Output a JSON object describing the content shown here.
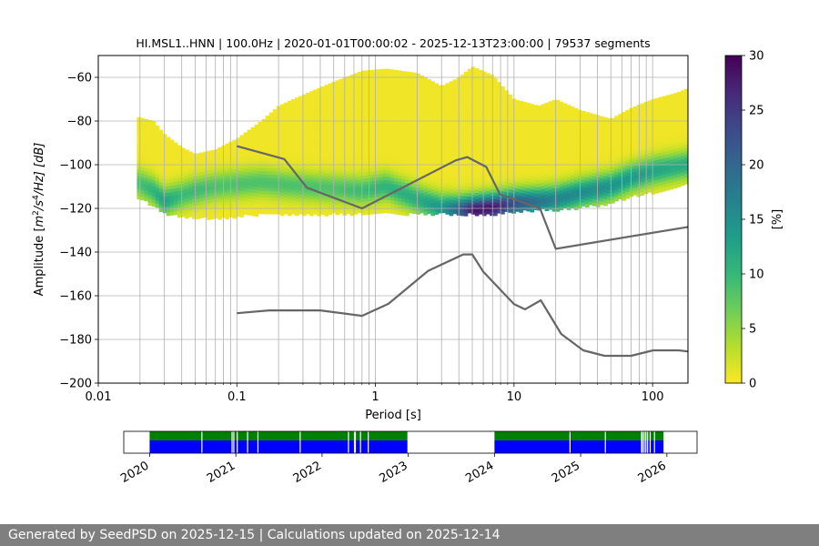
{
  "footer": {
    "text": "Generated by SeedPSD on 2025-12-15 | Calculations updated on 2025-12-14"
  },
  "chart_data": [
    {
      "type": "heatmap",
      "subtype": "probabilistic-power-spectral-density",
      "title": "HI.MSL1..HNN | 100.0Hz | 2020-01-01T00:00:02 - 2025-12-13T23:00:00 | 79537 segments",
      "xlabel": "Period [s]",
      "ylabel_parts": {
        "prefix": "Amplitude [",
        "m": "m",
        "exp2": "2",
        "mid": "/s",
        "exp4": "4",
        "suffix": "/Hz] [dB]"
      },
      "x_scale": "log",
      "xlim": [
        0.01,
        180
      ],
      "ylim": [
        -200,
        -50
      ],
      "x_ticks": [
        0.01,
        0.1,
        1,
        10,
        100
      ],
      "x_tick_labels": [
        "0.01",
        "0.1",
        "1",
        "10",
        "100"
      ],
      "y_ticks": [
        -200,
        -180,
        -160,
        -140,
        -120,
        -100,
        -80,
        -60
      ],
      "y_tick_labels": [
        "−200",
        "−180",
        "−160",
        "−140",
        "−120",
        "−100",
        "−80",
        "−60"
      ],
      "grid": true,
      "colorbar": {
        "label": "[%]",
        "range": [
          0,
          30
        ],
        "ticks": [
          0,
          5,
          10,
          15,
          20,
          25,
          30
        ],
        "tick_labels": [
          "0",
          "5",
          "10",
          "15",
          "20",
          "25",
          "30"
        ],
        "colormap": "viridis_r"
      },
      "colormap_stops": [
        "#fde725",
        "#b5de2b",
        "#6ece58",
        "#35b779",
        "#1f9e89",
        "#26828e",
        "#31688e",
        "#3e4989",
        "#482878",
        "#440154"
      ],
      "ppsd_band": {
        "period": [
          0.019,
          0.025,
          0.03,
          0.04,
          0.05,
          0.07,
          0.1,
          0.15,
          0.2,
          0.3,
          0.5,
          0.8,
          1.2,
          2,
          3,
          4,
          5,
          7,
          10,
          15,
          20,
          30,
          50,
          70,
          100,
          150,
          180
        ],
        "upper_db": [
          -78,
          -80,
          -86,
          -92,
          -95,
          -93,
          -88,
          -80,
          -73,
          -68,
          -62,
          -57,
          -56,
          -58,
          -64,
          -60,
          -55,
          -59,
          -70,
          -73,
          -70,
          -75,
          -79,
          -74,
          -70,
          -67,
          -65
        ],
        "lower_db": [
          -114,
          -118,
          -122,
          -123,
          -124,
          -124,
          -123,
          -122,
          -122,
          -122,
          -122,
          -122,
          -122,
          -122,
          -122,
          -122,
          -122,
          -122,
          -121,
          -120,
          -120,
          -119,
          -117,
          -114,
          -112,
          -110,
          -108
        ],
        "mode_db": [
          -108,
          -112,
          -117,
          -114,
          -112,
          -110,
          -109,
          -108,
          -109,
          -110,
          -111,
          -112,
          -110,
          -116,
          -120,
          -121,
          -121,
          -120,
          -118,
          -117,
          -116,
          -113,
          -110,
          -106,
          -103,
          -101,
          -100
        ],
        "mode_pct": [
          8,
          10,
          12,
          9,
          9,
          8,
          8,
          8,
          8,
          8,
          8,
          9,
          10,
          11,
          14,
          20,
          28,
          28,
          22,
          18,
          16,
          15,
          14,
          13,
          12,
          11,
          11
        ]
      },
      "series": [
        {
          "name": "NHNM",
          "period": [
            0.1,
            0.22,
            0.32,
            0.8,
            3.8,
            4.6,
            6.3,
            7.9,
            15.4,
            20,
            180
          ],
          "db": [
            -91.5,
            -97.4,
            -110.5,
            -120,
            -98,
            -96.5,
            -101,
            -113.5,
            -120,
            -138.5,
            -128.5
          ]
        },
        {
          "name": "NLNM",
          "period": [
            0.1,
            0.17,
            0.4,
            0.8,
            1.24,
            2.4,
            4.3,
            5,
            6,
            10,
            12,
            15.6,
            21.9,
            31.6,
            45,
            70,
            101,
            154,
            180
          ],
          "db": [
            -168,
            -166.7,
            -166.7,
            -169.2,
            -163.7,
            -148.6,
            -141.1,
            -141.1,
            -149,
            -163.8,
            -166.2,
            -162.1,
            -177.5,
            -185,
            -187.5,
            -187.5,
            -185,
            -185,
            -185.5
          ]
        }
      ]
    },
    {
      "type": "timeline",
      "subtype": "data-availability",
      "x_ticks": [
        "2020",
        "2021",
        "2022",
        "2023",
        "2024",
        "2025",
        "2026"
      ],
      "xlim_years": [
        2019.7,
        2026.35
      ],
      "coverage_spans_years": [
        [
          2020.0,
          2022.99
        ],
        [
          2024.0,
          2025.96
        ]
      ],
      "gaps_years": [
        2020.6,
        2020.95,
        2020.97,
        2021.01,
        2021.13,
        2021.25,
        2021.74,
        2022.3,
        2022.37,
        2022.38,
        2022.44,
        2022.53,
        2024.87,
        2025.28,
        2025.7,
        2025.71,
        2025.73,
        2025.75,
        2025.77,
        2025.8,
        2025.85
      ],
      "colors": {
        "top_band": "#008000",
        "bottom_band": "#0000ff"
      }
    }
  ]
}
